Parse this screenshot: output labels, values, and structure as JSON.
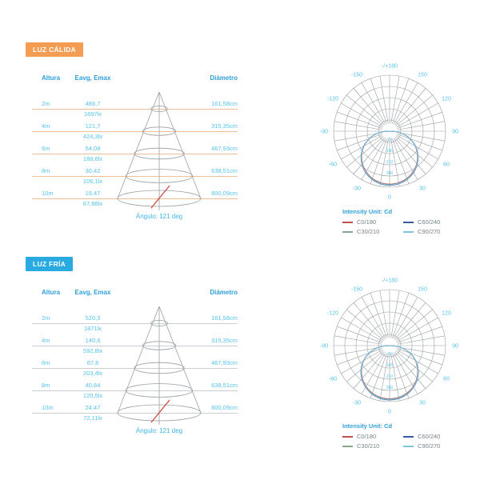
{
  "chart_data": [
    {
      "id": "warm-cone-table",
      "type": "table",
      "section": "LUZ CÁLIDA",
      "badge_color": "#f59c53",
      "columns": [
        "Altura",
        "Eavg, Emax",
        "Diámetro"
      ],
      "rows": [
        [
          "2m",
          "486,7",
          "1697lx",
          "161,58cm"
        ],
        [
          "4m",
          "121,7",
          "424,3lx",
          "315,35cm"
        ],
        [
          "6m",
          "54,08",
          "188,6lx",
          "467,93cm"
        ],
        [
          "8m",
          "30,42",
          "106,1lx",
          "638,51cm"
        ],
        [
          "10m",
          "19,47",
          "67,88lx",
          "800,09cm"
        ]
      ],
      "footer": "Ángulo: 121 deg",
      "beam_angle_deg": 121
    },
    {
      "id": "warm-polar",
      "type": "line",
      "subtype": "polar",
      "title": "Intensity Unit: Cd",
      "label_color": "#54c3ea",
      "grid_color": "#9aa0a3",
      "ring_labels": [
        "70",
        "140",
        "210",
        "280"
      ],
      "ring_max": 350,
      "angle_ticks": [
        {
          "deg": 0,
          "label": "0"
        },
        {
          "deg": 30,
          "label": "30"
        },
        {
          "deg": 60,
          "label": "60"
        },
        {
          "deg": 90,
          "label": "90"
        },
        {
          "deg": 120,
          "label": "120"
        },
        {
          "deg": 150,
          "label": "150"
        },
        {
          "deg": 180,
          "label": "-/+180"
        },
        {
          "deg": -30,
          "label": "-30"
        },
        {
          "deg": -60,
          "label": "-60"
        },
        {
          "deg": -90,
          "label": "-90"
        },
        {
          "deg": -120,
          "label": "-120"
        },
        {
          "deg": -150,
          "label": "-150"
        }
      ],
      "series": [
        {
          "name": "C0/180",
          "color": "#c0504d",
          "scale": 0.945
        },
        {
          "name": "C30/210",
          "color": "#8aa48e",
          "scale": 0.955
        },
        {
          "name": "C60/240",
          "color": "#3a5ba0",
          "scale": 0.965
        },
        {
          "name": "C90/270",
          "color": "#7fc5e0",
          "scale": 0.958
        }
      ],
      "profile": {
        "angles_deg": [
          -90,
          -80,
          -70,
          -60,
          -50,
          -40,
          -30,
          -20,
          -10,
          0,
          10,
          20,
          30,
          40,
          50,
          60,
          70,
          80,
          90
        ],
        "intensity_cd": [
          0,
          75,
          133,
          183,
          227,
          263,
          292,
          313,
          326,
          330,
          326,
          313,
          292,
          263,
          227,
          183,
          133,
          75,
          0
        ]
      }
    },
    {
      "id": "cold-cone-table",
      "type": "table",
      "section": "LUZ FRÍA",
      "badge_color": "#29abe2",
      "columns": [
        "Altura",
        "Eavg, Emax",
        "Diámetro"
      ],
      "rows": [
        [
          "2m",
          "520,3",
          "1871lx",
          "161,58cm"
        ],
        [
          "4m",
          "140,6",
          "592,8lx",
          "315,35cm"
        ],
        [
          "6m",
          "67,8",
          "203,4lx",
          "467,93cm"
        ],
        [
          "8m",
          "40,84",
          "120,5lx",
          "638,51cm"
        ],
        [
          "10m",
          "24,47",
          "72,11lx",
          "800,09cm"
        ]
      ],
      "footer": "Ángulo: 121 deg",
      "beam_angle_deg": 121
    },
    {
      "id": "cold-polar",
      "type": "line",
      "subtype": "polar",
      "title": "Intensity Unit: Cd",
      "label_color": "#54c3ea",
      "grid_color": "#9aa0a3",
      "ring_labels": [
        "70",
        "140",
        "210",
        "280"
      ],
      "ring_max": 350,
      "angle_ticks": [
        {
          "deg": 0,
          "label": "0"
        },
        {
          "deg": 30,
          "label": "30"
        },
        {
          "deg": 60,
          "label": "60"
        },
        {
          "deg": 90,
          "label": "90"
        },
        {
          "deg": 120,
          "label": "120"
        },
        {
          "deg": 150,
          "label": "150"
        },
        {
          "deg": 180,
          "label": "-/+180"
        },
        {
          "deg": -30,
          "label": "-30"
        },
        {
          "deg": -60,
          "label": "-60"
        },
        {
          "deg": -90,
          "label": "-90"
        },
        {
          "deg": -120,
          "label": "-120"
        },
        {
          "deg": -150,
          "label": "-150"
        }
      ],
      "series": [
        {
          "name": "C0/180",
          "color": "#c0504d",
          "scale": 0.95
        },
        {
          "name": "C30/210",
          "color": "#8aa48e",
          "scale": 0.96
        },
        {
          "name": "C60/240",
          "color": "#3a5ba0",
          "scale": 0.97
        },
        {
          "name": "C90/270",
          "color": "#7fc5e0",
          "scale": 0.963
        }
      ],
      "profile": {
        "angles_deg": [
          -90,
          -80,
          -70,
          -60,
          -50,
          -40,
          -30,
          -20,
          -10,
          0,
          10,
          20,
          30,
          40,
          50,
          60,
          70,
          80,
          90
        ],
        "intensity_cd": [
          0,
          76,
          135,
          186,
          230,
          267,
          297,
          318,
          331,
          335,
          331,
          318,
          297,
          267,
          230,
          186,
          135,
          76,
          0
        ]
      }
    }
  ]
}
